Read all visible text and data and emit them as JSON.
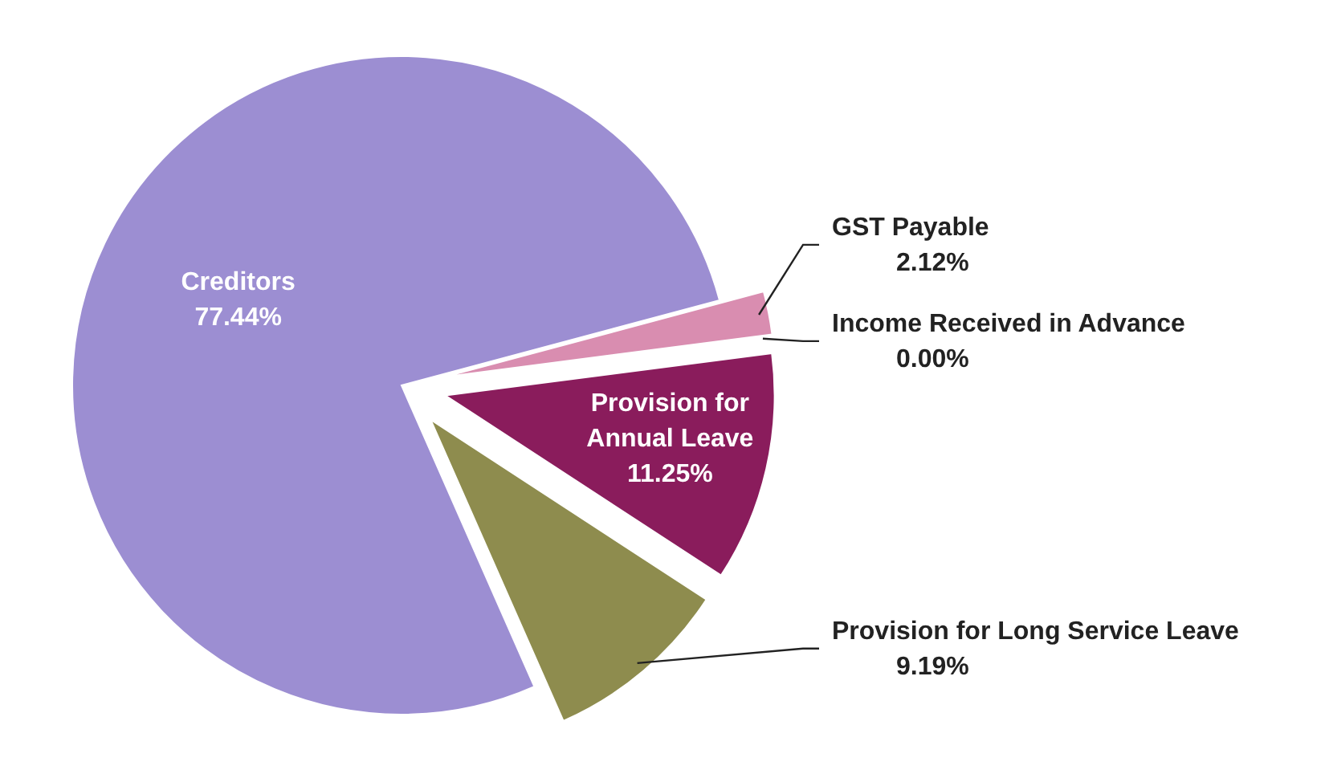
{
  "chart_data": {
    "type": "pie",
    "categories": [
      "GST Payable",
      "Income Received in Advance",
      "Provision for Annual Leave",
      "Provision for Long Service Leave",
      "Creditors"
    ],
    "values": [
      2.12,
      0.0,
      11.25,
      9.19,
      77.44
    ],
    "value_labels": [
      "2.12%",
      "0.00%",
      "11.25%",
      "9.19%",
      "77.44%"
    ],
    "colors": [
      "#d98db0",
      "#b9cde0",
      "#8a1c5c",
      "#8e8c4e",
      "#9c8ed2"
    ]
  }
}
